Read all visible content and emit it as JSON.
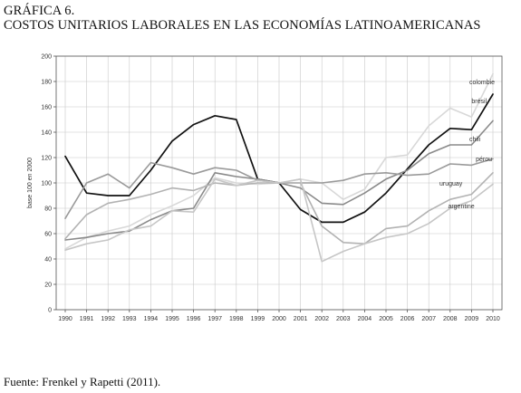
{
  "heading": {
    "figure_label": "GRÁFICA 6.",
    "title": "COSTOS UNITARIOS LABORALES EN LAS ECONOMÍAS LATINOAMERICANAS"
  },
  "source": "Fuente: Frenkel y Rapetti (2011).",
  "chart_data": {
    "type": "line",
    "ylabel": "base 100 en 2000",
    "xlabel": "",
    "ylim": [
      0,
      200
    ],
    "yticks": [
      0,
      20,
      40,
      60,
      80,
      100,
      120,
      140,
      160,
      180,
      200
    ],
    "grid": true,
    "x": [
      "1990",
      "1991",
      "1992",
      "1993",
      "1994",
      "1995",
      "1996",
      "1997",
      "1998",
      "1999",
      "2000",
      "2001",
      "2002",
      "2003",
      "2004",
      "2005",
      "2006",
      "2007",
      "2008",
      "2009",
      "2010"
    ],
    "series": [
      {
        "name": "colombie",
        "color": "#d8d8d8",
        "width": 1.6,
        "values": [
          48,
          57,
          62,
          66,
          75,
          82,
          90,
          104,
          100,
          99,
          100,
          103,
          100,
          87,
          95,
          120,
          122,
          145,
          159,
          152,
          186
        ]
      },
      {
        "name": "brésil",
        "color": "#111111",
        "width": 1.7,
        "values": [
          121,
          92,
          90,
          90,
          110,
          133,
          146,
          153,
          150,
          103,
          100,
          79,
          69,
          69,
          77,
          92,
          111,
          130,
          143,
          142,
          170
        ]
      },
      {
        "name": "chili",
        "color": "#8a8a8a",
        "width": 1.6,
        "values": [
          55,
          57,
          60,
          62,
          71,
          78,
          80,
          108,
          105,
          103,
          100,
          96,
          84,
          83,
          92,
          103,
          110,
          123,
          130,
          130,
          149
        ]
      },
      {
        "name": "pérou",
        "color": "#9a9a9a",
        "width": 1.6,
        "values": [
          72,
          100,
          107,
          96,
          116,
          112,
          107,
          112,
          110,
          102,
          100,
          100,
          100,
          102,
          107,
          108,
          106,
          107,
          115,
          114,
          119
        ]
      },
      {
        "name": "uruguay",
        "color": "#b2b2b2",
        "width": 1.6,
        "values": [
          56,
          75,
          84,
          87,
          91,
          96,
          94,
          100,
          98,
          100,
          100,
          100,
          66,
          53,
          52,
          64,
          66,
          78,
          87,
          91,
          108
        ]
      },
      {
        "name": "argentine",
        "color": "#c6c6c6",
        "width": 1.6,
        "values": [
          47,
          52,
          55,
          63,
          66,
          78,
          77,
          103,
          98,
          102,
          100,
          103,
          38,
          46,
          52,
          57,
          60,
          68,
          80,
          86,
          99
        ]
      }
    ],
    "label_positions": {
      "colombie": [
        2008.9,
        178
      ],
      "brésil": [
        2009.0,
        163
      ],
      "chili": [
        2008.9,
        133
      ],
      "pérou": [
        2009.2,
        117
      ],
      "uruguay": [
        2007.5,
        98
      ],
      "argentine": [
        2007.9,
        80
      ]
    }
  }
}
